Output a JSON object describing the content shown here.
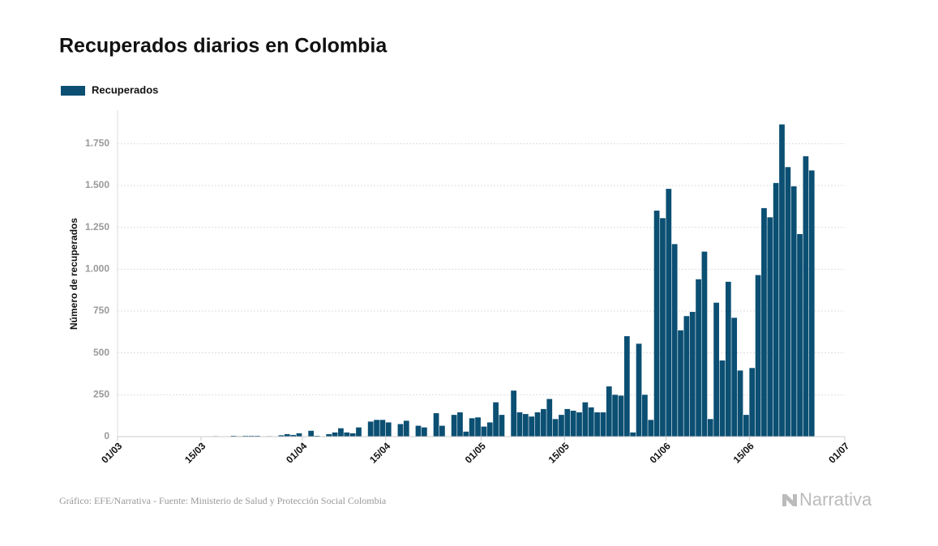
{
  "chart_data": {
    "type": "bar",
    "title": "Recuperados diarios en Colombia",
    "ylabel": "Número de recuperados",
    "source": "Gráfico: EFE/Narrativa - Fuente: Ministerio de Salud y Protección Social Colombia",
    "brand": "Narrativa",
    "x": [
      0,
      1,
      2,
      3,
      4,
      5,
      6,
      7,
      8,
      9,
      10,
      11,
      12,
      13,
      14,
      15,
      16,
      17,
      18,
      19,
      20,
      21,
      22,
      23,
      24,
      25,
      26,
      27,
      28,
      29,
      30,
      31,
      32,
      33,
      34,
      35,
      36,
      37,
      38,
      39,
      40,
      41,
      42,
      43,
      44,
      45,
      46,
      47,
      48,
      49,
      50,
      51,
      52,
      53,
      54,
      55,
      56,
      57,
      58,
      59,
      60,
      61,
      62,
      63,
      64,
      65,
      66,
      67,
      68,
      69,
      70,
      71,
      72,
      73,
      74,
      75,
      76,
      77,
      78,
      79,
      80,
      81,
      82,
      83,
      84,
      85,
      86,
      87,
      88,
      89,
      90,
      91,
      92,
      93,
      94,
      95,
      96,
      97,
      98,
      99,
      100,
      101,
      102,
      103,
      104,
      105,
      106,
      107,
      108,
      109,
      110,
      111,
      112,
      113,
      114,
      115,
      116
    ],
    "series": [
      {
        "name": "Recuperados",
        "color": "#0b4f73",
        "values": [
          0,
          0,
          0,
          0,
          0,
          1,
          0,
          0,
          1,
          0,
          1,
          0,
          2,
          0,
          2,
          0,
          3,
          1,
          0,
          5,
          3,
          5,
          5,
          5,
          0,
          3,
          0,
          8,
          15,
          10,
          20,
          0,
          35,
          5,
          0,
          15,
          25,
          50,
          25,
          20,
          55,
          0,
          90,
          100,
          100,
          85,
          0,
          75,
          95,
          0,
          65,
          55,
          0,
          140,
          65,
          0,
          130,
          145,
          30,
          110,
          115,
          60,
          85,
          205,
          130,
          0,
          275,
          145,
          135,
          120,
          145,
          165,
          225,
          105,
          130,
          165,
          155,
          145,
          205,
          175,
          145,
          145,
          300,
          250,
          245,
          600,
          25,
          555,
          250,
          100,
          1350,
          1305,
          1480,
          1150,
          635,
          720,
          745,
          940,
          1105,
          105,
          800,
          455,
          925,
          710,
          395,
          130,
          410,
          965,
          1365,
          1310,
          1515,
          1865,
          1610,
          1495,
          1210,
          1675,
          1590
        ]
      }
    ],
    "xlim": [
      0,
      122
    ],
    "xticks": [
      {
        "value": 0,
        "label": "01/03"
      },
      {
        "value": 14,
        "label": "15/03"
      },
      {
        "value": 31,
        "label": "01/04"
      },
      {
        "value": 45,
        "label": "15/04"
      },
      {
        "value": 61,
        "label": "01/05"
      },
      {
        "value": 75,
        "label": "15/05"
      },
      {
        "value": 92,
        "label": "01/06"
      },
      {
        "value": 106,
        "label": "15/06"
      },
      {
        "value": 122,
        "label": "01/07"
      }
    ],
    "ylim": [
      0,
      1950
    ],
    "yticks": [
      0,
      250,
      500,
      750,
      {
        "value": 1000,
        "label": "1.000"
      },
      {
        "value": 1250,
        "label": "1.250"
      },
      {
        "value": 1500,
        "label": "1.500"
      },
      {
        "value": 1750,
        "label": "1.750"
      }
    ],
    "grid": true
  }
}
